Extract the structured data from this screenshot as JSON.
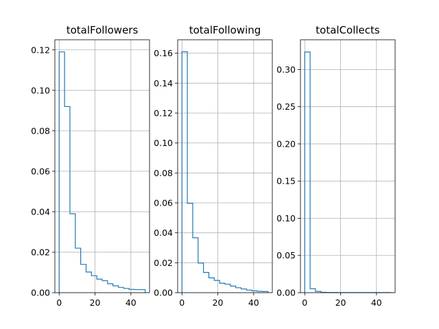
{
  "chart_data": [
    {
      "type": "step-histogram",
      "title": "totalFollowers",
      "xlabel": "",
      "ylabel": "",
      "bin_edges": [
        0,
        3,
        6,
        9,
        12,
        15,
        18,
        21,
        24,
        27,
        30,
        33,
        36,
        39,
        42,
        45,
        48
      ],
      "values": [
        0.119,
        0.092,
        0.039,
        0.022,
        0.014,
        0.0102,
        0.0084,
        0.0067,
        0.0059,
        0.0044,
        0.0034,
        0.0026,
        0.0021,
        0.0016,
        0.0015,
        0.0015
      ],
      "xlim": [
        -2.4,
        50.4
      ],
      "ylim": [
        0,
        0.125
      ],
      "xticks": [
        0,
        20,
        40
      ],
      "yticks": [
        0.0,
        0.02,
        0.04,
        0.06,
        0.08,
        0.1,
        0.12
      ],
      "ytick_labels": [
        "0.00",
        "0.02",
        "0.04",
        "0.06",
        "0.08",
        "0.10",
        "0.12"
      ],
      "grid": true
    },
    {
      "type": "step-histogram",
      "title": "totalFollowing",
      "xlabel": "",
      "ylabel": "",
      "bin_edges": [
        0,
        3,
        6,
        9,
        12,
        15,
        18,
        21,
        24,
        27,
        30,
        33,
        36,
        39,
        42,
        45,
        48
      ],
      "values": [
        0.161,
        0.0597,
        0.0367,
        0.0198,
        0.0135,
        0.0099,
        0.0082,
        0.0063,
        0.0057,
        0.0044,
        0.0033,
        0.0025,
        0.0017,
        0.0012,
        0.0009,
        0.0008
      ],
      "xlim": [
        -2.4,
        50.4
      ],
      "ylim": [
        0,
        0.169
      ],
      "xticks": [
        0,
        20,
        40
      ],
      "yticks": [
        0.0,
        0.02,
        0.04,
        0.06,
        0.08,
        0.1,
        0.12,
        0.14,
        0.16
      ],
      "ytick_labels": [
        "0.00",
        "0.02",
        "0.04",
        "0.06",
        "0.08",
        "0.10",
        "0.12",
        "0.14",
        "0.16"
      ],
      "grid": true
    },
    {
      "type": "step-histogram",
      "title": "totalCollects",
      "xlabel": "",
      "ylabel": "",
      "bin_edges": [
        0,
        3,
        6,
        9,
        12,
        15,
        18,
        21,
        24,
        27,
        30,
        33,
        36,
        39,
        42,
        45,
        48
      ],
      "values": [
        0.3235,
        0.0053,
        0.0017,
        0.0005,
        0.0003,
        0.0002,
        0.0001,
        0.0001,
        0.0001,
        0.0001,
        0.0001,
        0.0001,
        0.0001,
        0.0001,
        0.0001,
        0.0001
      ],
      "xlim": [
        -2.4,
        50.4
      ],
      "ylim": [
        0,
        0.34
      ],
      "xticks": [
        0,
        20,
        40
      ],
      "yticks": [
        0.0,
        0.05,
        0.1,
        0.15,
        0.2,
        0.25,
        0.3
      ],
      "ytick_labels": [
        "0.00",
        "0.05",
        "0.10",
        "0.15",
        "0.20",
        "0.25",
        "0.30"
      ],
      "grid": true
    }
  ],
  "colors": {
    "series": "#1f77b4",
    "grid": "#b0b0b0",
    "axes": "#000000"
  }
}
